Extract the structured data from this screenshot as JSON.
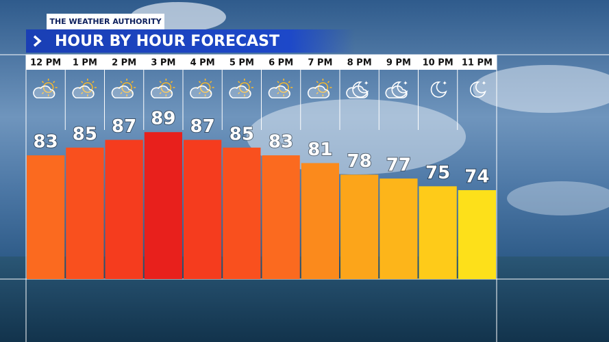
{
  "chart_data": {
    "type": "bar",
    "brand": "THE WEATHER AUTHORITY",
    "title": "HOUR BY HOUR FORECAST",
    "categories": [
      "12 PM",
      "1 PM",
      "2 PM",
      "3 PM",
      "4 PM",
      "5 PM",
      "6 PM",
      "7 PM",
      "8 PM",
      "9 PM",
      "10 PM",
      "11 PM"
    ],
    "values": [
      83,
      85,
      87,
      89,
      87,
      85,
      83,
      81,
      78,
      77,
      75,
      74
    ],
    "colors": [
      "#fb6a1f",
      "#f9501e",
      "#f53c1e",
      "#e8201c",
      "#f53c1e",
      "#f9501e",
      "#fb6a1f",
      "#fb8a1c",
      "#fca51a",
      "#fdb51a",
      "#fecb19",
      "#fde01a"
    ],
    "ylim": [
      51,
      100
    ]
  }
}
